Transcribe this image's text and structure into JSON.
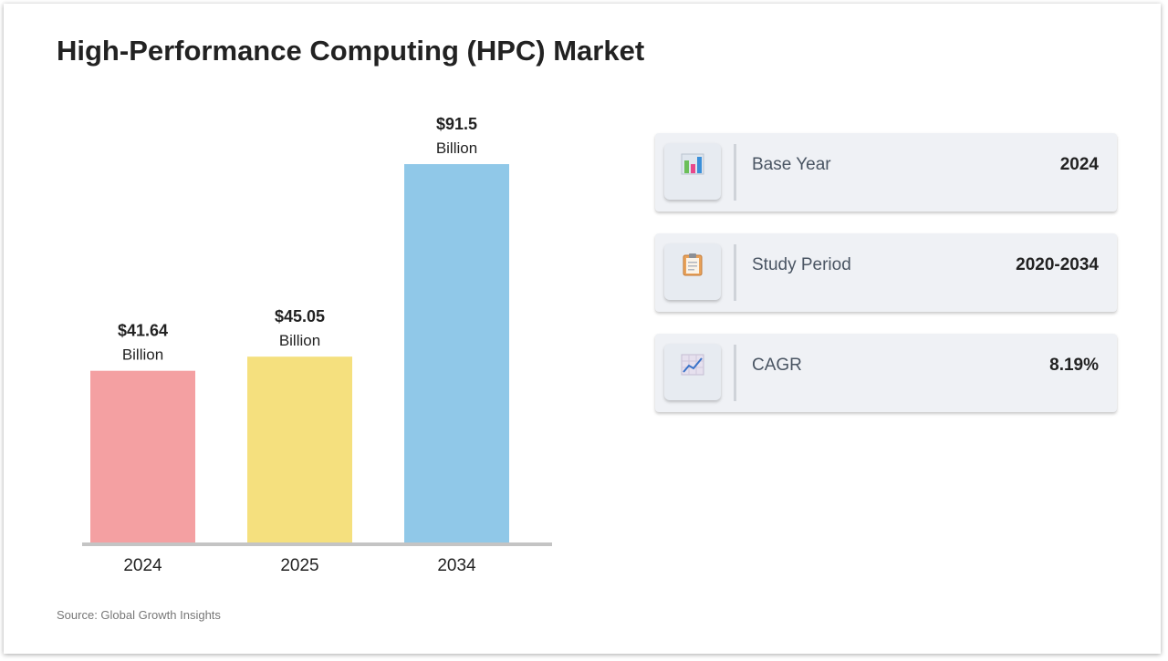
{
  "title": "High-Performance Computing (HPC) Market",
  "source": "Source: Global Growth Insights",
  "chart_data": {
    "type": "bar",
    "title": "High-Performance Computing (HPC) Market",
    "categories": [
      "2024",
      "2025",
      "2034"
    ],
    "values": [
      41.64,
      45.05,
      91.5
    ],
    "value_labels": [
      "$41.64",
      "$45.05",
      "$91.5"
    ],
    "unit_label": "Billion",
    "colors": [
      "#f4a0a2",
      "#f5e07e",
      "#90c8e8"
    ],
    "ylim": [
      0,
      91.5
    ],
    "grid": false,
    "legend": "none"
  },
  "stats": [
    {
      "label": "Base Year",
      "value": "2024",
      "icon": "bar-chart-icon"
    },
    {
      "label": "Study Period",
      "value": "2020-2034",
      "icon": "clipboard-icon"
    },
    {
      "label": "CAGR",
      "value": "8.19%",
      "icon": "line-chart-icon"
    }
  ]
}
